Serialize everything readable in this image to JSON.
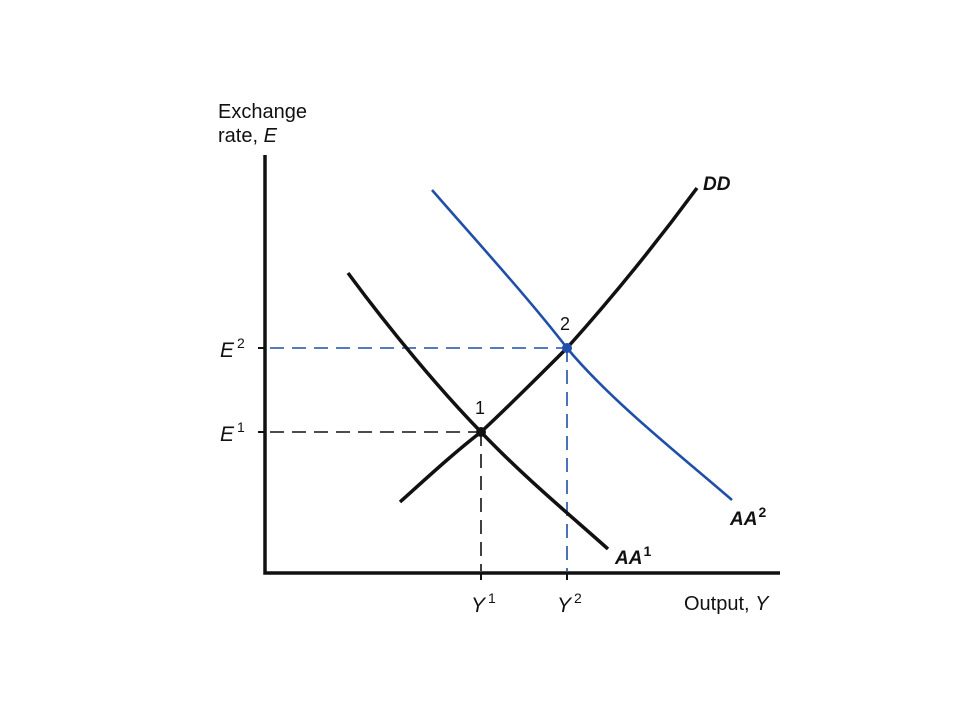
{
  "diagram": {
    "y_axis_title_line1": "Exchange",
    "y_axis_title_line2_prefix": "rate, ",
    "y_axis_title_line2_var": "E",
    "x_axis_title_prefix": "Output, ",
    "x_axis_title_var": "Y",
    "y_ticks": [
      {
        "base": "E",
        "sup": "2"
      },
      {
        "base": "E",
        "sup": "1"
      }
    ],
    "x_ticks": [
      {
        "base": "Y",
        "sup": "1"
      },
      {
        "base": "Y",
        "sup": "2"
      }
    ],
    "points": [
      {
        "label": "1",
        "color": "#111111"
      },
      {
        "label": "2",
        "color": "#1f4fa8"
      }
    ],
    "curves": [
      {
        "base": "DD",
        "sup": "",
        "color": "#111111"
      },
      {
        "base": "AA",
        "sup": "1",
        "color": "#111111"
      },
      {
        "base": "AA",
        "sup": "2",
        "color": "#1f4fa8"
      }
    ],
    "colors": {
      "axis": "#111111",
      "guide_initial": "#111111",
      "guide_new": "#1f4fa8"
    }
  }
}
